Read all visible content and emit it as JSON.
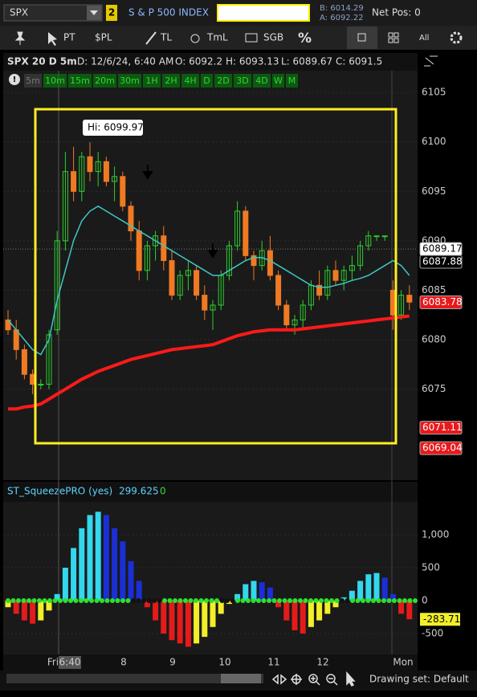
{
  "toolbar": {
    "symbol": "SPX",
    "link": "2",
    "description": "S & P 500 INDEX",
    "bid": "B: 6014.29",
    "ask": "A: 6092.22",
    "net_pos": "Net Pos: 0"
  },
  "tools": [
    "PT",
    "$PL",
    "TL",
    "TmL",
    "SGB",
    "%"
  ],
  "right_tool": "All",
  "info": {
    "title": "SPX 20 D 5m",
    "date": "D: 12/6/24, 6:40 AM",
    "open": "O: 6092.2",
    "high": "H: 6093.13",
    "low": "L: 6089.67",
    "close": "C: 6091.5"
  },
  "timeframes": [
    "5m",
    "10m",
    "15m",
    "20m",
    "30m",
    "1H",
    "2H",
    "4H",
    "D",
    "2D",
    "3D",
    "4D",
    "W",
    "M"
  ],
  "price_chart": {
    "type": "candlestick",
    "ylim": [
      6065.8,
      6107.2
    ],
    "yticks": [
      6075,
      6080,
      6085,
      6090,
      6095,
      6100,
      6105
    ],
    "annotation": "Hi: 6099.97",
    "open": [
      6082,
      6081,
      6079,
      6076.5,
      6075.5,
      6075.5,
      6081,
      6090,
      6097,
      6095,
      6098.5,
      6097,
      6098,
      6096,
      6096.5,
      6093.5,
      6091,
      6087,
      6089.5,
      6090.5,
      6088,
      6084.5,
      6086.5,
      6087,
      6084.5,
      6083,
      6083.5,
      6086.5,
      6089.5,
      6093,
      6088.5,
      6087.5,
      6089,
      6086.5,
      6083.5,
      6081.5,
      6082,
      6083.5,
      6085.5,
      6084.5,
      6087,
      6086,
      6087,
      6087.5,
      6089.5,
      6090.5,
      6090.5,
      6085,
      6082.5,
      6084.5
    ],
    "high": [
      6083,
      6082,
      6079.5,
      6077,
      6076,
      6081,
      6091,
      6099,
      6099.5,
      6099,
      6099.97,
      6099,
      6098.5,
      6097.5,
      6097,
      6094,
      6092,
      6090,
      6091,
      6091.5,
      6089,
      6087,
      6088,
      6087.5,
      6085.5,
      6084,
      6087,
      6090,
      6094,
      6093.5,
      6089,
      6090,
      6090.5,
      6087,
      6084,
      6082.5,
      6084,
      6086,
      6087,
      6087.5,
      6088,
      6087.5,
      6088.5,
      6090,
      6091,
      6090.5,
      6090.5,
      6086,
      6085,
      6085.5
    ],
    "low": [
      6080.5,
      6078,
      6076,
      6074.5,
      6075,
      6075,
      6080.5,
      6089,
      6094,
      6094,
      6096,
      6095.5,
      6095.5,
      6094,
      6093,
      6090,
      6086,
      6086,
      6088,
      6087,
      6084,
      6084,
      6085,
      6084,
      6082,
      6081,
      6083,
      6086,
      6089,
      6088,
      6086,
      6087,
      6086,
      6083,
      6081,
      6080.5,
      6081,
      6083,
      6084,
      6084,
      6085.5,
      6085,
      6086,
      6087,
      6089,
      6090,
      6090,
      6081,
      6082,
      6083
    ],
    "close": [
      6081,
      6079,
      6076.5,
      6075.5,
      6075.5,
      6080.5,
      6090,
      6097,
      6095,
      6098.5,
      6097,
      6098,
      6096,
      6096.5,
      6093.5,
      6091,
      6087,
      6089.5,
      6090.5,
      6088,
      6084.5,
      6086.5,
      6087,
      6084.5,
      6083,
      6083.5,
      6086.5,
      6089.5,
      6093,
      6088.5,
      6087.5,
      6089,
      6086.5,
      6083.5,
      6081.5,
      6082,
      6083.5,
      6085.5,
      6084.5,
      6087,
      6086,
      6087,
      6087.5,
      6089.5,
      6090.5,
      6090.5,
      6090.5,
      6082.5,
      6084.5,
      6083.8
    ],
    "lines": [
      {
        "color": "#3fc6c6",
        "width": 1.5,
        "values": [
          6082,
          6081,
          6080,
          6079,
          6078.5,
          6080,
          6084,
          6087,
          6090,
          6092,
          6093,
          6093.5,
          6093,
          6092.5,
          6092,
          6091.5,
          6091,
          6090.5,
          6090,
          6089.5,
          6089,
          6088.5,
          6088,
          6087.5,
          6087,
          6086.5,
          6086.5,
          6087,
          6087.5,
          6088,
          6088.3,
          6088.3,
          6088,
          6087.5,
          6087,
          6086.5,
          6086,
          6085.5,
          6085.3,
          6085.3,
          6085.5,
          6085.7,
          6086,
          6086.2,
          6086.5,
          6087,
          6087.5,
          6088,
          6087.5,
          6086.5
        ]
      },
      {
        "color": "#ff1a1a",
        "width": 4,
        "values": [
          6073,
          6073,
          6073.2,
          6073.3,
          6073.5,
          6074,
          6074.5,
          6075,
          6075.5,
          6076,
          6076.4,
          6076.8,
          6077.1,
          6077.4,
          6077.7,
          6078,
          6078.2,
          6078.4,
          6078.6,
          6078.8,
          6079,
          6079.1,
          6079.2,
          6079.3,
          6079.4,
          6079.5,
          6079.8,
          6080.1,
          6080.4,
          6080.6,
          6080.8,
          6080.9,
          6081,
          6081,
          6081,
          6081,
          6081.1,
          6081.2,
          6081.3,
          6081.4,
          6081.5,
          6081.6,
          6081.7,
          6081.8,
          6081.9,
          6082,
          6082.1,
          6082.2,
          6082.3,
          6082.4
        ]
      }
    ],
    "price_labels": [
      {
        "value": 6089.17,
        "bg": "#ffffff",
        "fg": "#000000"
      },
      {
        "value": 6087.88,
        "bg": "#000000",
        "fg": "#ffffff"
      },
      {
        "value": 6083.78,
        "bg": "#e8191b",
        "fg": "#ffffff"
      },
      {
        "value": 6071.11,
        "bg": "#e8191b",
        "fg": "#ffffff"
      },
      {
        "value": 6069.04,
        "bg": "#e8191b",
        "fg": "#ffffff"
      }
    ]
  },
  "study": {
    "type": "bar",
    "name": "ST_SqueezePRO (yes)",
    "reading": "299.625",
    "extra": "0",
    "ylim": [
      -817,
      1500
    ],
    "yticks": [
      {
        "value": 1000,
        "label": "1,000"
      },
      500,
      0,
      -500
    ],
    "values": [
      -100,
      -200,
      -300,
      -350,
      -300,
      -150,
      100,
      500,
      800,
      1100,
      1300,
      1350,
      1300,
      1100,
      900,
      600,
      300,
      -100,
      -300,
      -500,
      -600,
      -650,
      -700,
      -650,
      -550,
      -400,
      -200,
      -50,
      100,
      250,
      300,
      280,
      200,
      -100,
      -300,
      -450,
      -500,
      -400,
      -300,
      -200,
      -100,
      50,
      150,
      300,
      400,
      420,
      350,
      100,
      -200,
      -283.71
    ],
    "current": -283.71
  },
  "time_labels": [
    "Fri",
    "6:40",
    "8",
    "9",
    "10",
    "11",
    "12",
    "Mon"
  ],
  "status": "Drawing set: Default"
}
